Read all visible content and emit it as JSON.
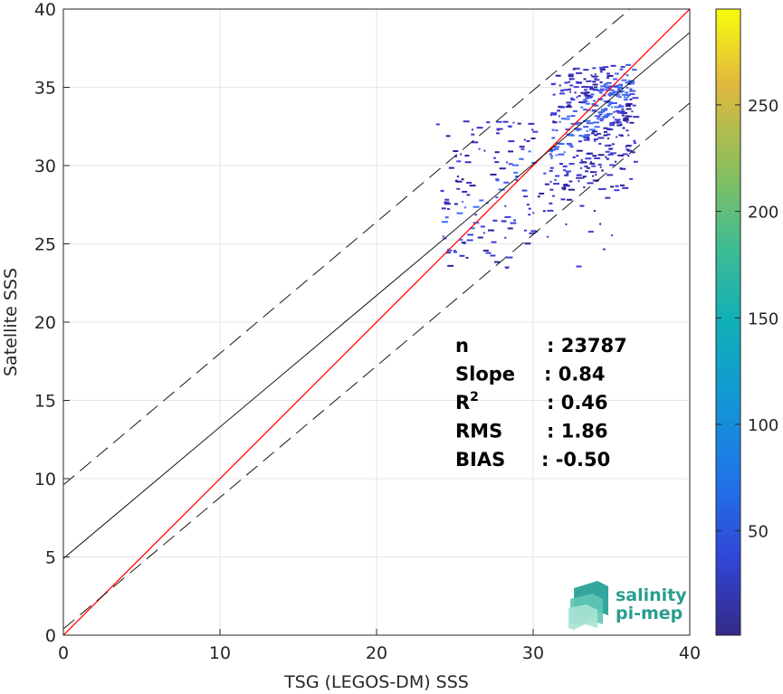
{
  "chart_data": {
    "type": "heatmap",
    "title": "",
    "xlabel": "TSG (LEGOS-DM) SSS",
    "ylabel": "Satellite SSS",
    "xlim": [
      0,
      40
    ],
    "ylim": [
      0,
      40
    ],
    "xticks": [
      "0",
      "10",
      "20",
      "30",
      "40"
    ],
    "yticks": [
      "0",
      "5",
      "10",
      "15",
      "20",
      "25",
      "30",
      "35",
      "40"
    ],
    "grid": true,
    "colormap": "parula",
    "colorbar": {
      "min": 1,
      "max": 295,
      "ticks": [
        "50",
        "100",
        "150",
        "200",
        "250"
      ],
      "tick_values": [
        50,
        100,
        150,
        200,
        250
      ]
    },
    "lines": [
      {
        "name": "identity",
        "slope": 1.0,
        "intercept": 0.0,
        "color": "#ff0000",
        "style": "solid"
      },
      {
        "name": "regression",
        "slope": 0.84,
        "intercept": 4.9,
        "color": "#000000",
        "style": "solid"
      },
      {
        "name": "upper-bound",
        "slope": 0.84,
        "intercept": 9.6,
        "color": "#000000",
        "style": "dashed"
      },
      {
        "name": "lower-bound",
        "slope": 0.84,
        "intercept": 0.4,
        "color": "#000000",
        "style": "dashed"
      }
    ],
    "density_clusters": [
      {
        "x": [
          31,
          36.5
        ],
        "y": [
          28.5,
          36.5
        ],
        "count": 1400
      },
      {
        "x": [
          24,
          36.5
        ],
        "y": [
          23.5,
          30
        ],
        "count": 700
      },
      {
        "x": [
          23.5,
          30
        ],
        "y": [
          30,
          33
        ],
        "count": 220
      },
      {
        "x": [
          33,
          36
        ],
        "y": [
          32.5,
          35.5
        ],
        "count": 300
      }
    ],
    "stats": [
      {
        "label": "n",
        "value": ": 23787"
      },
      {
        "label": "Slope",
        "value": ": 0.84"
      },
      {
        "label": "R",
        "sup": "2",
        "value": ": 0.46"
      },
      {
        "label": "RMS",
        "value": ": 1.86"
      },
      {
        "label": "BIAS",
        "value": ": -0.50"
      }
    ]
  },
  "logo": {
    "line1": "salinity",
    "line2": "pi-mep",
    "color": "#2a9d8f"
  }
}
